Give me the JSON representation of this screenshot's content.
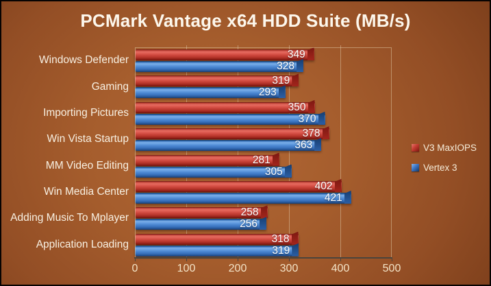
{
  "chart_data": {
    "type": "bar",
    "orientation": "horizontal",
    "title": "PCMark Vantage x64 HDD Suite (MB/s)",
    "categories": [
      "Windows Defender",
      "Gaming",
      "Importing Pictures",
      "Win Vista Startup",
      "MM Video Editing",
      "Win Media Center",
      "Adding Music To Mplayer",
      "Application Loading"
    ],
    "series": [
      {
        "name": "V3 MaxIOPS",
        "color": "#c23b31",
        "values": [
          349,
          319,
          350,
          378,
          281,
          402,
          258,
          318
        ]
      },
      {
        "name": "Vertex 3",
        "color": "#3b74c4",
        "values": [
          328,
          293,
          370,
          363,
          305,
          421,
          256,
          319
        ]
      }
    ],
    "xlim": [
      0,
      500
    ],
    "x_ticks": [
      0,
      100,
      200,
      300,
      400,
      500
    ],
    "grid": true,
    "legend_position": "right",
    "value_labels": "inside-end"
  },
  "colors": {
    "background_center": "#b26835",
    "background_edge": "#441d07",
    "title_text": "#fdf7ec",
    "axis_text": "#f3e3c6",
    "category_text": "#f8f1e3",
    "value_text": "#ffffff",
    "gridline": "#e4cfb2",
    "series_red": "#c23b31",
    "series_blue": "#3b74c4"
  }
}
